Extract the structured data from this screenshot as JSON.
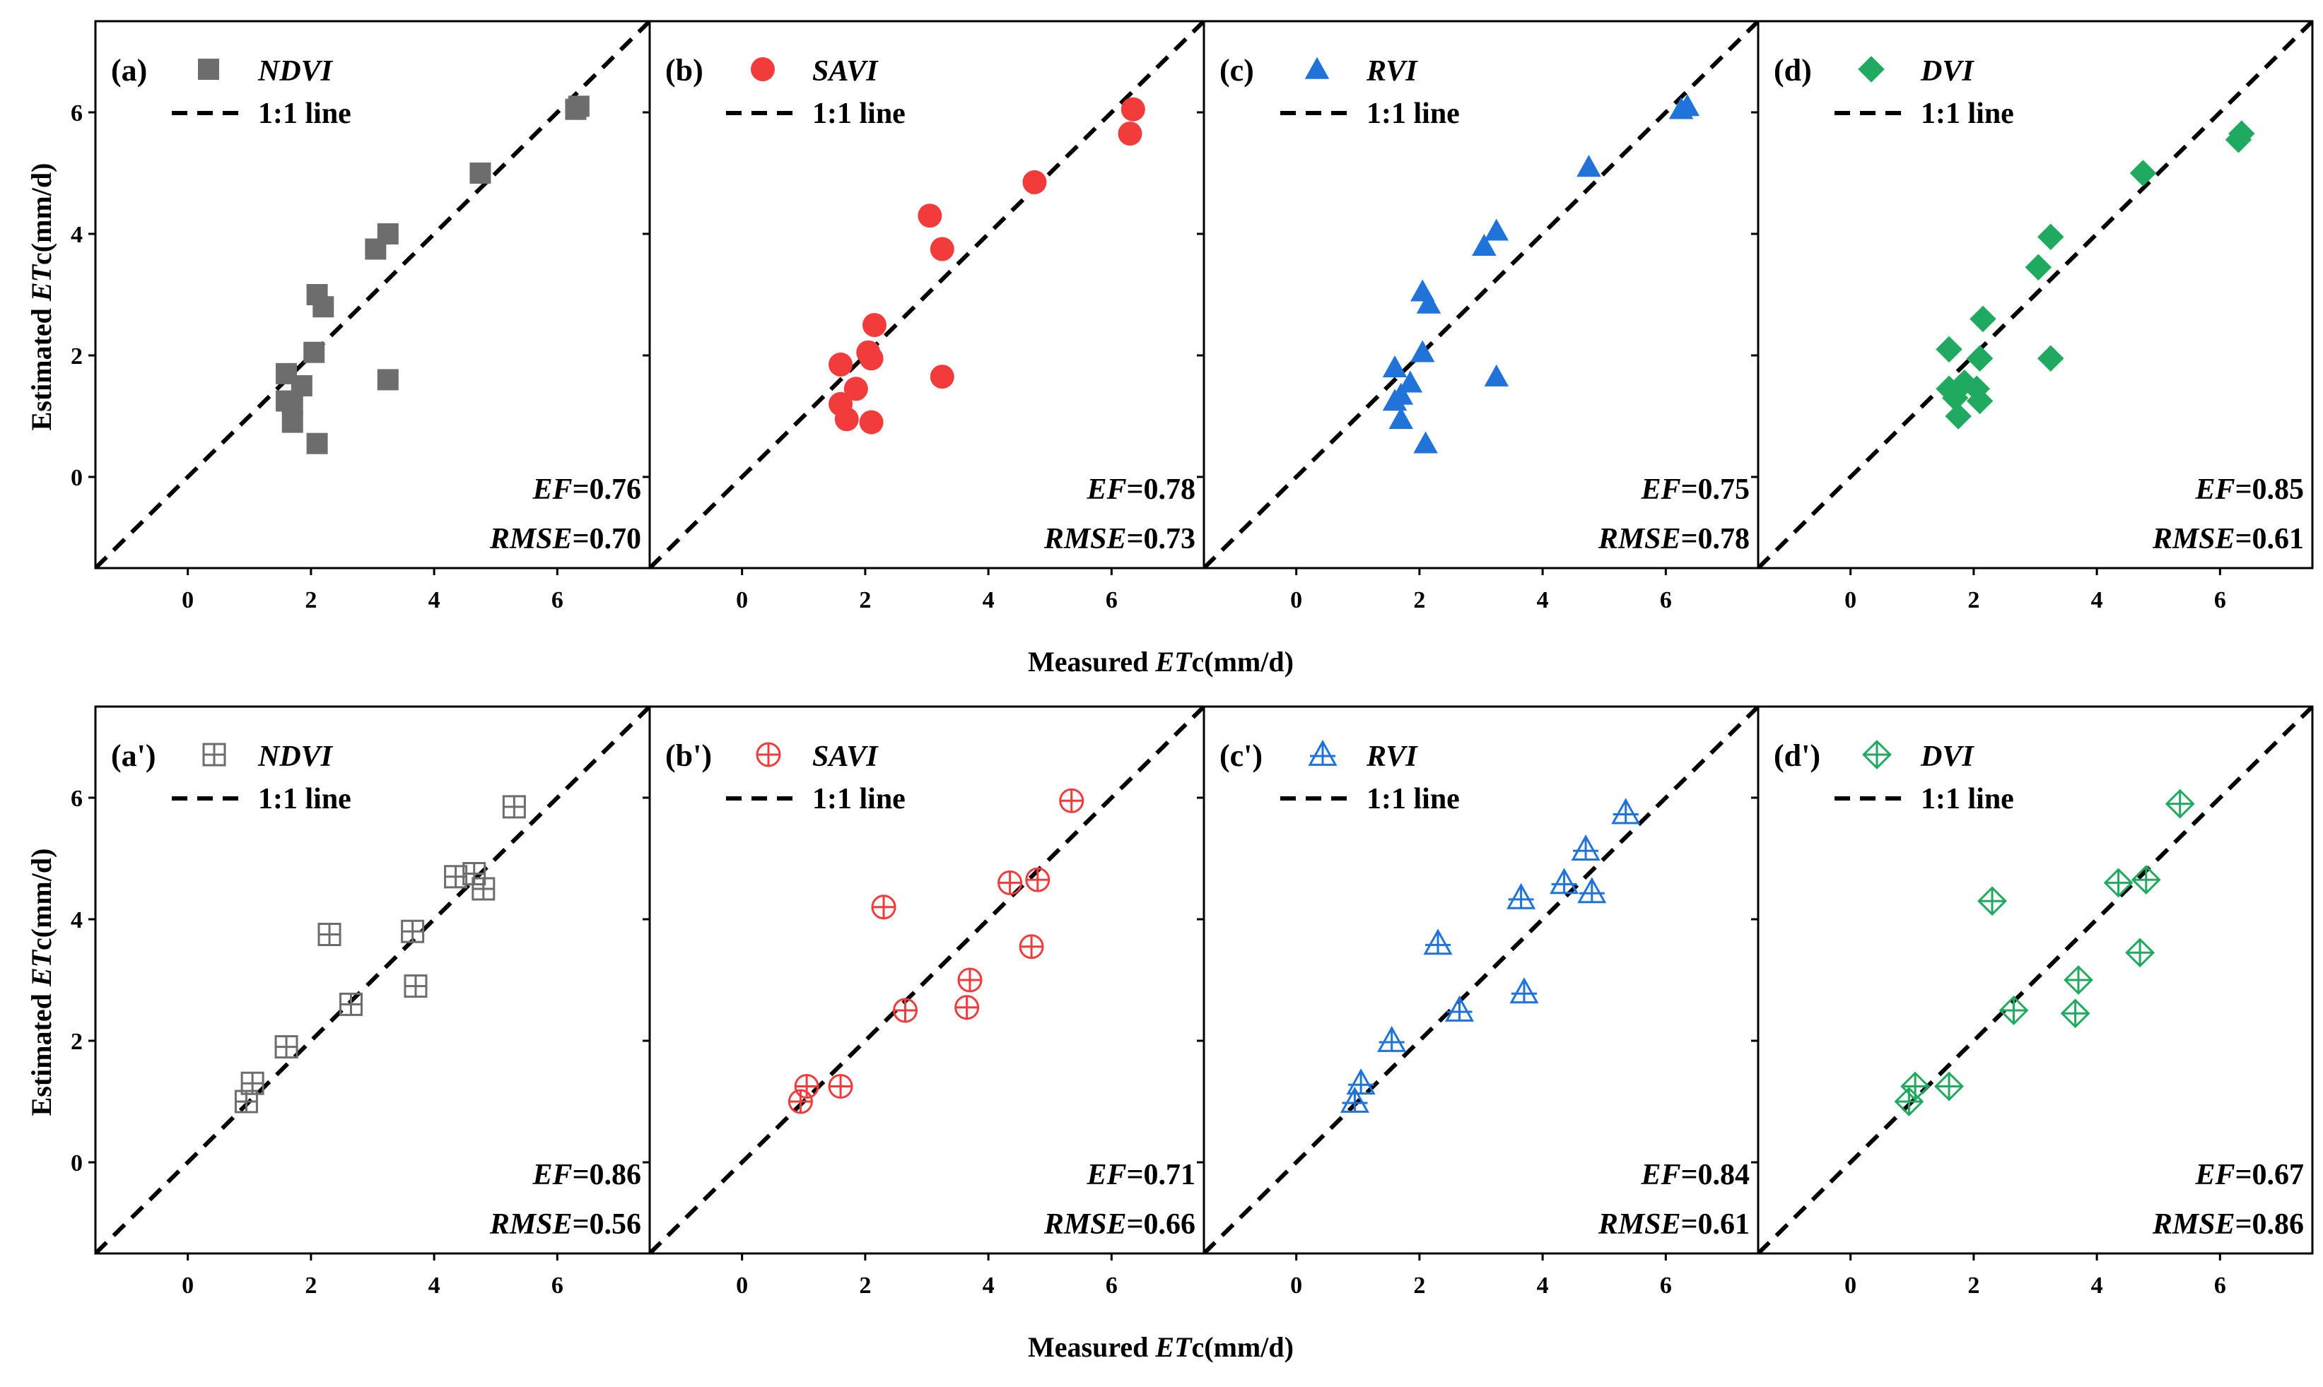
{
  "colors": {
    "NDVI": "#6d6d6d",
    "SAVI": "#f23c3c",
    "RVI": "#1f73d9",
    "DVI": "#1faa5f",
    "frame": "#000000",
    "refline": "#000000"
  },
  "axes": {
    "xlim": [
      -1.5,
      7.5
    ],
    "ylim": [
      -1.5,
      7.5
    ],
    "xticks": [
      "0",
      "2",
      "4",
      "6"
    ],
    "yticks": [
      "0",
      "2",
      "4",
      "6"
    ],
    "ylabel_prefix": "Estimated ",
    "ylabel_var": "ET",
    "ylabel_suffix": "c(mm/d)",
    "xlabel_prefix": "Measured ",
    "xlabel_var": "ET",
    "xlabel_suffix": "c(mm/d)"
  },
  "legend_line_label": "1:1 line",
  "stat_labels": {
    "ef": "EF",
    "rmse": "RMSE"
  },
  "chart_data": [
    {
      "type": "scatter",
      "label": "(a)",
      "index": "NDVI",
      "marker": "square-filled",
      "row": 0,
      "col": 0,
      "ef": "=0.76",
      "rmse": "=0.70",
      "points": [
        [
          1.6,
          1.7
        ],
        [
          1.6,
          1.25
        ],
        [
          1.7,
          1.2
        ],
        [
          1.7,
          0.9
        ],
        [
          1.85,
          1.5
        ],
        [
          2.05,
          2.05
        ],
        [
          2.1,
          3.0
        ],
        [
          2.2,
          2.8
        ],
        [
          2.1,
          0.55
        ],
        [
          3.05,
          3.75
        ],
        [
          3.25,
          4.0
        ],
        [
          3.25,
          1.6
        ],
        [
          4.75,
          5.0
        ],
        [
          6.3,
          6.05
        ],
        [
          6.35,
          6.1
        ]
      ]
    },
    {
      "type": "scatter",
      "label": "(b)",
      "index": "SAVI",
      "marker": "circle-filled",
      "row": 0,
      "col": 1,
      "ef": "=0.78",
      "rmse": "=0.73",
      "points": [
        [
          1.6,
          1.85
        ],
        [
          1.6,
          1.2
        ],
        [
          1.7,
          0.95
        ],
        [
          1.85,
          1.45
        ],
        [
          2.05,
          2.05
        ],
        [
          2.1,
          1.95
        ],
        [
          2.15,
          2.5
        ],
        [
          2.1,
          0.9
        ],
        [
          3.05,
          4.3
        ],
        [
          3.25,
          3.75
        ],
        [
          3.25,
          1.65
        ],
        [
          4.75,
          4.85
        ],
        [
          6.3,
          5.65
        ],
        [
          6.35,
          6.05
        ]
      ]
    },
    {
      "type": "scatter",
      "label": "(c)",
      "index": "RVI",
      "marker": "triangle-filled",
      "row": 0,
      "col": 2,
      "ef": "=0.75",
      "rmse": "=0.78",
      "points": [
        [
          1.6,
          1.8
        ],
        [
          1.6,
          1.25
        ],
        [
          1.7,
          1.35
        ],
        [
          1.7,
          0.95
        ],
        [
          1.85,
          1.55
        ],
        [
          2.05,
          2.05
        ],
        [
          2.05,
          3.05
        ],
        [
          2.15,
          2.85
        ],
        [
          2.1,
          0.55
        ],
        [
          3.05,
          3.8
        ],
        [
          3.25,
          4.05
        ],
        [
          3.25,
          1.65
        ],
        [
          4.75,
          5.1
        ],
        [
          6.25,
          6.05
        ],
        [
          6.35,
          6.1
        ]
      ]
    },
    {
      "type": "scatter",
      "label": "(d)",
      "index": "DVI",
      "marker": "diamond-filled",
      "row": 0,
      "col": 3,
      "ef": "=0.85",
      "rmse": "=0.61",
      "points": [
        [
          1.6,
          2.1
        ],
        [
          1.6,
          1.45
        ],
        [
          1.7,
          1.3
        ],
        [
          1.75,
          1.0
        ],
        [
          1.85,
          1.55
        ],
        [
          2.05,
          1.45
        ],
        [
          2.1,
          1.95
        ],
        [
          2.15,
          2.6
        ],
        [
          2.1,
          1.25
        ],
        [
          3.05,
          3.45
        ],
        [
          3.25,
          3.95
        ],
        [
          3.25,
          1.95
        ],
        [
          4.75,
          5.0
        ],
        [
          6.3,
          5.55
        ],
        [
          6.35,
          5.65
        ]
      ]
    },
    {
      "type": "scatter",
      "label": "(a')",
      "index": "NDVI",
      "marker": "square-open-cross",
      "row": 1,
      "col": 0,
      "ef": "=0.86",
      "rmse": "=0.56",
      "points": [
        [
          0.95,
          1.0
        ],
        [
          1.05,
          1.3
        ],
        [
          1.6,
          1.9
        ],
        [
          2.3,
          3.75
        ],
        [
          2.65,
          2.6
        ],
        [
          3.65,
          3.8
        ],
        [
          3.7,
          2.9
        ],
        [
          4.35,
          4.7
        ],
        [
          4.65,
          4.75
        ],
        [
          4.8,
          4.5
        ],
        [
          5.3,
          5.85
        ]
      ]
    },
    {
      "type": "scatter",
      "label": "(b')",
      "index": "SAVI",
      "marker": "circle-open-cross",
      "row": 1,
      "col": 1,
      "ef": "=0.71",
      "rmse": "=0.66",
      "points": [
        [
          0.95,
          1.0
        ],
        [
          1.05,
          1.25
        ],
        [
          1.6,
          1.25
        ],
        [
          2.3,
          4.2
        ],
        [
          2.65,
          2.5
        ],
        [
          3.65,
          2.55
        ],
        [
          3.7,
          3.0
        ],
        [
          4.35,
          4.6
        ],
        [
          4.7,
          3.55
        ],
        [
          4.8,
          4.65
        ],
        [
          5.35,
          5.95
        ]
      ]
    },
    {
      "type": "scatter",
      "label": "(c')",
      "index": "RVI",
      "marker": "triangle-open-cross",
      "row": 1,
      "col": 2,
      "ef": "=0.84",
      "rmse": "=0.61",
      "points": [
        [
          0.95,
          1.0
        ],
        [
          1.05,
          1.3
        ],
        [
          1.55,
          2.0
        ],
        [
          2.3,
          3.6
        ],
        [
          2.65,
          2.5
        ],
        [
          3.65,
          4.35
        ],
        [
          3.7,
          2.8
        ],
        [
          4.35,
          4.6
        ],
        [
          4.7,
          5.15
        ],
        [
          4.8,
          4.45
        ],
        [
          5.35,
          5.75
        ]
      ]
    },
    {
      "type": "scatter",
      "label": "(d')",
      "index": "DVI",
      "marker": "diamond-open-cross",
      "row": 1,
      "col": 3,
      "ef": "=0.67",
      "rmse": "=0.86",
      "points": [
        [
          0.95,
          1.0
        ],
        [
          1.05,
          1.25
        ],
        [
          1.6,
          1.25
        ],
        [
          2.3,
          4.3
        ],
        [
          2.65,
          2.5
        ],
        [
          3.65,
          2.45
        ],
        [
          3.7,
          3.0
        ],
        [
          4.35,
          4.6
        ],
        [
          4.7,
          3.45
        ],
        [
          4.8,
          4.65
        ],
        [
          5.35,
          5.9
        ]
      ]
    }
  ]
}
